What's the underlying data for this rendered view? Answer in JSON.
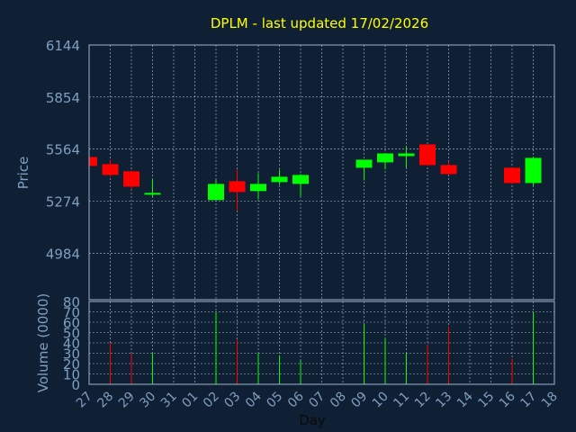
{
  "chart_data": [
    {
      "type": "candlestick",
      "title": "DPLM - last updated 17/02/2026",
      "ylabel": "Price",
      "ylim": [
        4725,
        6144
      ],
      "y_ticks": [
        6144,
        5854,
        5564,
        5274,
        4984
      ],
      "x_ticks": [
        "27",
        "28",
        "29",
        "30",
        "31",
        "01",
        "02",
        "03",
        "04",
        "05",
        "06",
        "07",
        "08",
        "09",
        "10",
        "11",
        "12",
        "13",
        "14",
        "15",
        "16",
        "17",
        "18"
      ],
      "grid": true,
      "up_color": "#00ff00",
      "down_color": "#ff0000",
      "candles": [
        {
          "date": "27",
          "open": 5520,
          "high": 5525,
          "low": 5470,
          "close": 5470
        },
        {
          "date": "28",
          "open": 5480,
          "high": 5505,
          "low": 5410,
          "close": 5420
        },
        {
          "date": "29",
          "open": 5440,
          "high": 5445,
          "low": 5340,
          "close": 5355
        },
        {
          "date": "30",
          "open": 5310,
          "high": 5395,
          "low": 5300,
          "close": 5320
        },
        {
          "date": "02",
          "open": 5280,
          "high": 5395,
          "low": 5280,
          "close": 5370
        },
        {
          "date": "03",
          "open": 5385,
          "high": 5450,
          "low": 5220,
          "close": 5325
        },
        {
          "date": "04",
          "open": 5330,
          "high": 5430,
          "low": 5285,
          "close": 5370
        },
        {
          "date": "05",
          "open": 5380,
          "high": 5450,
          "low": 5365,
          "close": 5410
        },
        {
          "date": "06",
          "open": 5370,
          "high": 5425,
          "low": 5300,
          "close": 5420
        },
        {
          "date": "09",
          "open": 5460,
          "high": 5505,
          "low": 5390,
          "close": 5505
        },
        {
          "date": "10",
          "open": 5490,
          "high": 5540,
          "low": 5450,
          "close": 5540
        },
        {
          "date": "11",
          "open": 5525,
          "high": 5580,
          "low": 5460,
          "close": 5540
        },
        {
          "date": "12",
          "open": 5590,
          "high": 5590,
          "low": 5470,
          "close": 5475
        },
        {
          "date": "13",
          "open": 5475,
          "high": 5495,
          "low": 5420,
          "close": 5425
        },
        {
          "date": "16",
          "open": 5460,
          "high": 5460,
          "low": 5370,
          "close": 5375
        },
        {
          "date": "17",
          "open": 5375,
          "high": 5520,
          "low": 5360,
          "close": 5515
        }
      ]
    },
    {
      "type": "bar",
      "ylabel": "Volume (0000)",
      "xlabel": "Day",
      "ylim": [
        0,
        80
      ],
      "y_ticks": [
        0,
        10,
        20,
        30,
        40,
        50,
        60,
        70,
        80
      ],
      "series": [
        {
          "values": [
            {
              "date": "28",
              "value": 40,
              "dir": "down"
            },
            {
              "date": "29",
              "value": 30,
              "dir": "down"
            },
            {
              "date": "30",
              "value": 30,
              "dir": "up"
            },
            {
              "date": "02",
              "value": 70,
              "dir": "up"
            },
            {
              "date": "03",
              "value": 43,
              "dir": "down"
            },
            {
              "date": "04",
              "value": 30,
              "dir": "up"
            },
            {
              "date": "05",
              "value": 28,
              "dir": "up"
            },
            {
              "date": "06",
              "value": 23,
              "dir": "up"
            },
            {
              "date": "09",
              "value": 58,
              "dir": "up"
            },
            {
              "date": "10",
              "value": 45,
              "dir": "up"
            },
            {
              "date": "11",
              "value": 30,
              "dir": "up"
            },
            {
              "date": "12",
              "value": 38,
              "dir": "down"
            },
            {
              "date": "13",
              "value": 56,
              "dir": "down"
            },
            {
              "date": "16",
              "value": 25,
              "dir": "down"
            },
            {
              "date": "17",
              "value": 70,
              "dir": "up"
            }
          ]
        }
      ]
    }
  ]
}
